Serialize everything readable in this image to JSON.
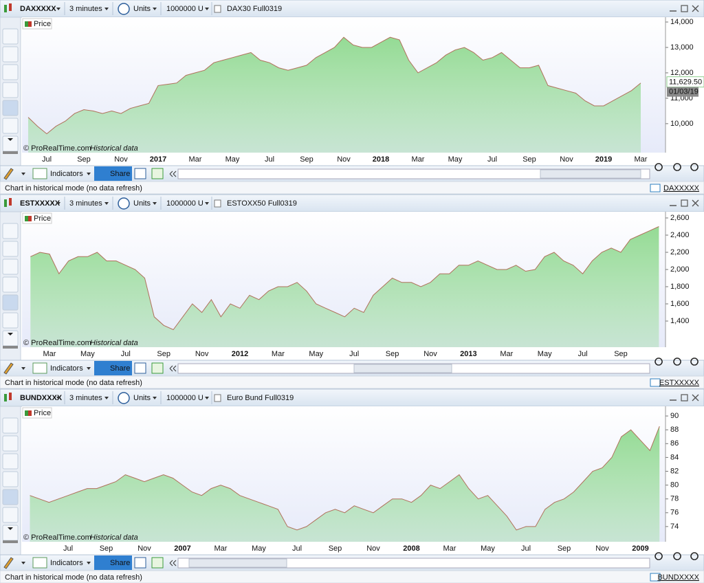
{
  "panels": [
    {
      "toolbar": {
        "symbol": "DAXXXXX",
        "interval": "3 minutes",
        "units_menu": "Units",
        "units": "1000000 U",
        "instrument": "DAX30 Full0319"
      },
      "chart": {
        "type": "area",
        "legend": "Price",
        "credit": "© ProRealTime.com",
        "credit_note": "Historical data",
        "color": "#8fd98f",
        "line_color": "#b0705a",
        "categories": [
          null,
          null,
          "Jul",
          null,
          null,
          null,
          "Sep",
          null,
          null,
          null,
          "Nov",
          null,
          null,
          null,
          "2017",
          null,
          null,
          null,
          "Mar",
          null,
          null,
          null,
          "May",
          null,
          null,
          null,
          "Jul",
          null,
          null,
          null,
          "Sep",
          null,
          null,
          null,
          "Nov",
          null,
          null,
          null,
          "2018",
          null,
          null,
          null,
          "Mar",
          null,
          null,
          null,
          "May",
          null,
          null,
          null,
          "Jul",
          null,
          null,
          null,
          "Sep",
          null,
          null,
          null,
          "Nov",
          null,
          null,
          null,
          "2019",
          null,
          null,
          null,
          "Mar"
        ],
        "values": [
          10250,
          9900,
          9600,
          9900,
          10100,
          10400,
          10550,
          10500,
          10400,
          10500,
          10400,
          10600,
          10700,
          10800,
          11500,
          11550,
          11600,
          11900,
          12000,
          12100,
          12400,
          12500,
          12600,
          12700,
          12800,
          12500,
          12400,
          12200,
          12100,
          12200,
          12300,
          12600,
          12800,
          13000,
          13400,
          13100,
          13000,
          13000,
          13200,
          13400,
          13300,
          12500,
          12000,
          12200,
          12400,
          12700,
          12900,
          13000,
          12800,
          12500,
          12600,
          12800,
          12500,
          12200,
          12200,
          12300,
          11500,
          11400,
          11300,
          11200,
          10900,
          10700,
          10700,
          10900,
          11100,
          11300,
          11600
        ],
        "ylim": [
          8860,
          14190
        ],
        "yticks": [
          {
            "value": 10000,
            "label": "10,000"
          },
          {
            "value": 11000,
            "label": "11,000"
          },
          {
            "value": 12000,
            "label": "12,000"
          },
          {
            "value": 13000,
            "label": "13,000"
          },
          {
            "value": 14000,
            "label": "14,000"
          }
        ],
        "price_tag": {
          "value": 11629.5,
          "label": "11,629.50",
          "date": "01/03/19"
        }
      },
      "bottom_toolbar": {
        "indicators": "Indicators",
        "share": "Share"
      },
      "status": "Chart in historical mode (no data refresh)",
      "link": "DAXXXXX"
    },
    {
      "toolbar": {
        "symbol": "ESTXXXXX",
        "interval": "3 minutes",
        "units_menu": "Units",
        "units": "1000000 U",
        "instrument": "ESTOXX50 Full0319"
      },
      "chart": {
        "type": "area",
        "legend": "Price",
        "credit": "© ProRealTime.com",
        "credit_note": "Historical data",
        "color": "#8fd98f",
        "line_color": "#b0705a",
        "categories": [
          null,
          null,
          "Mar",
          null,
          null,
          null,
          "May",
          null,
          null,
          null,
          "Jul",
          null,
          null,
          null,
          "Sep",
          null,
          null,
          null,
          "Nov",
          null,
          null,
          null,
          "2012",
          null,
          null,
          null,
          "Mar",
          null,
          null,
          null,
          "May",
          null,
          null,
          null,
          "Jul",
          null,
          null,
          null,
          "Sep",
          null,
          null,
          null,
          "Nov",
          null,
          null,
          null,
          "2013",
          null,
          null,
          null,
          "Mar",
          null,
          null,
          null,
          "May",
          null,
          null,
          null,
          "Jul",
          null,
          null,
          null,
          "Sep",
          null,
          null,
          null,
          null
        ],
        "values": [
          2150,
          2200,
          2180,
          1950,
          2100,
          2150,
          2150,
          2200,
          2100,
          2100,
          2050,
          2000,
          1900,
          1450,
          1350,
          1300,
          1450,
          1600,
          1500,
          1650,
          1450,
          1600,
          1550,
          1700,
          1650,
          1750,
          1800,
          1800,
          1850,
          1750,
          1600,
          1550,
          1500,
          1450,
          1550,
          1500,
          1700,
          1800,
          1900,
          1850,
          1850,
          1800,
          1850,
          1950,
          1950,
          2050,
          2050,
          2100,
          2050,
          2000,
          2000,
          2050,
          1980,
          2000,
          2150,
          2200,
          2100,
          2050,
          1950,
          2100,
          2200,
          2250,
          2200,
          2350,
          2400,
          2450,
          2500
        ],
        "ylim": [
          1096,
          2672
        ],
        "yticks": [
          {
            "value": 1400,
            "label": "1,400"
          },
          {
            "value": 1600,
            "label": "1,600"
          },
          {
            "value": 1800,
            "label": "1,800"
          },
          {
            "value": 2000,
            "label": "2,000"
          },
          {
            "value": 2200,
            "label": "2,200"
          },
          {
            "value": 2400,
            "label": "2,400"
          },
          {
            "value": 2600,
            "label": "2,600"
          }
        ]
      },
      "bottom_toolbar": {
        "indicators": "Indicators",
        "share": "Share"
      },
      "status": "Chart in historical mode (no data refresh)",
      "link": "ESTXXXXX"
    },
    {
      "toolbar": {
        "symbol": "BUNDXXXX",
        "interval": "3 minutes",
        "units_menu": "Units",
        "units": "1000000 U",
        "instrument": "Euro Bund Full0319"
      },
      "chart": {
        "type": "area",
        "legend": "Price",
        "credit": "© ProRealTime.com",
        "credit_note": "Historical data",
        "color": "#8fd98f",
        "line_color": "#b0705a",
        "categories": [
          null,
          null,
          null,
          null,
          "Jul",
          null,
          null,
          null,
          "Sep",
          null,
          null,
          null,
          "Nov",
          null,
          null,
          null,
          "2007",
          null,
          null,
          null,
          "Mar",
          null,
          null,
          null,
          "May",
          null,
          null,
          null,
          "Jul",
          null,
          null,
          null,
          "Sep",
          null,
          null,
          null,
          "Nov",
          null,
          null,
          null,
          "2008",
          null,
          null,
          null,
          "Mar",
          null,
          null,
          null,
          "May",
          null,
          null,
          null,
          "Jul",
          null,
          null,
          null,
          "Sep",
          null,
          null,
          null,
          "Nov",
          null,
          null,
          null,
          "2009",
          null,
          null
        ],
        "values": [
          78.5,
          78,
          77.5,
          78,
          78.5,
          79,
          79.5,
          79.5,
          80,
          80.5,
          81.5,
          81,
          80.5,
          81,
          81.5,
          81,
          80,
          79,
          78.5,
          79.5,
          80,
          79.5,
          78.5,
          78,
          77.5,
          77,
          76.5,
          74,
          73.5,
          74,
          75,
          76,
          76.5,
          76,
          77,
          76.5,
          76,
          77,
          78,
          78,
          77.5,
          78.5,
          80,
          79.5,
          80.5,
          81.5,
          79.5,
          78,
          78.5,
          77,
          75.5,
          73.5,
          74,
          74,
          76.5,
          77.5,
          78,
          79,
          80.5,
          82,
          82.5,
          84,
          87,
          88,
          86.5,
          85,
          88.5
        ],
        "ylim": [
          71.8,
          91.4
        ],
        "yticks": [
          74,
          76,
          78,
          80,
          82,
          84,
          86,
          88,
          90
        ]
      },
      "bottom_toolbar": {
        "indicators": "Indicators",
        "share": "Share"
      },
      "status": "Chart in historical mode (no data refresh)",
      "link": "BUNDXXXX"
    }
  ]
}
